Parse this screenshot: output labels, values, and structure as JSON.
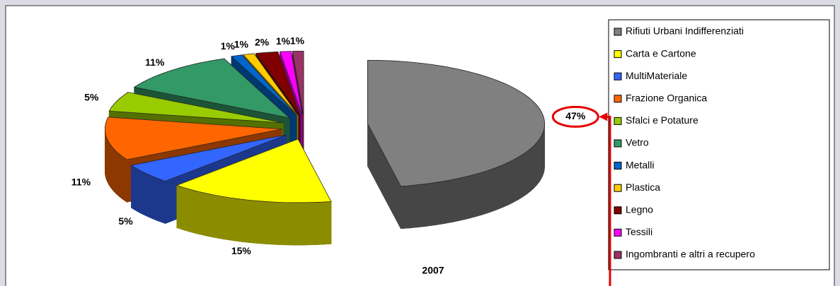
{
  "chart_data": {
    "type": "pie",
    "title": "2007",
    "categories": [
      "Rifiuti Urbani Indifferenziati",
      "Carta e Cartone",
      "MultiMateriale",
      "Frazione  Organica",
      "Sfalci e Potature",
      "Vetro",
      "Metalli",
      "Plastica",
      "Legno",
      "Tessili",
      "Ingombranti e altri a recupero"
    ],
    "values": [
      47,
      15,
      5,
      11,
      5,
      11,
      1,
      1,
      2,
      1,
      1
    ],
    "value_labels": [
      "47%",
      "15%",
      "5%",
      "11%",
      "5%",
      "11%",
      "1%",
      "1%",
      "2%",
      "1%",
      "1%"
    ],
    "colors": [
      "#808080",
      "#ffff00",
      "#3366ff",
      "#ff6600",
      "#99cc00",
      "#339966",
      "#0066cc",
      "#ffcc00",
      "#800000",
      "#ff00ff",
      "#993366"
    ],
    "legend": "right"
  }
}
